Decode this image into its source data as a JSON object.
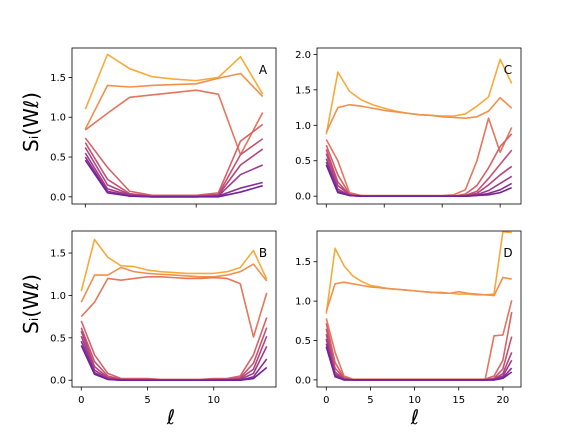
{
  "figure": {
    "ylabel": "Sᵢ(Wℓ)",
    "xlabel": "ℓ"
  },
  "colors": [
    "#f7aa3a",
    "#f1904d",
    "#e3765d",
    "#d46368",
    "#c45373",
    "#b2457e",
    "#a03a88",
    "#8a2f92",
    "#72229b"
  ],
  "chart_data": [
    {
      "panel": "A",
      "type": "line",
      "x": [
        0,
        1,
        2,
        3,
        4,
        5,
        6,
        7,
        8
      ],
      "xlim": [
        -0.6,
        8.6
      ],
      "ylim": [
        -0.09,
        1.87
      ],
      "xticks": [
        0,
        5
      ],
      "yticks": [
        0.0,
        0.5,
        1.0,
        1.5
      ],
      "xtick_labels_visible": false,
      "series": [
        {
          "values": [
            1.1,
            1.79,
            1.61,
            1.51,
            1.48,
            1.46,
            1.5,
            1.76,
            1.29
          ]
        },
        {
          "values": [
            0.85,
            1.4,
            1.38,
            1.4,
            1.41,
            1.42,
            1.49,
            1.55,
            1.26
          ]
        },
        {
          "values": [
            0.84,
            1.05,
            1.25,
            1.28,
            1.31,
            1.34,
            1.29,
            0.53,
            1.06
          ]
        },
        {
          "values": [
            0.74,
            0.37,
            0.07,
            0.02,
            0.02,
            0.02,
            0.05,
            0.7,
            0.91
          ]
        },
        {
          "values": [
            0.68,
            0.22,
            0.04,
            0.01,
            0.01,
            0.01,
            0.03,
            0.53,
            0.73
          ]
        },
        {
          "values": [
            0.62,
            0.15,
            0.03,
            0.01,
            0.01,
            0.01,
            0.02,
            0.4,
            0.6
          ]
        },
        {
          "values": [
            0.55,
            0.1,
            0.02,
            0.0,
            0.0,
            0.0,
            0.01,
            0.28,
            0.4
          ]
        },
        {
          "values": [
            0.5,
            0.07,
            0.01,
            0.0,
            0.0,
            0.0,
            0.01,
            0.11,
            0.18
          ]
        },
        {
          "values": [
            0.46,
            0.05,
            0.01,
            0.0,
            0.0,
            0.0,
            0.0,
            0.06,
            0.14
          ]
        }
      ]
    },
    {
      "panel": "C",
      "type": "line",
      "x": [
        0,
        1,
        2,
        3,
        4,
        5,
        6,
        7,
        8,
        9,
        10,
        11,
        12,
        13,
        14,
        15,
        16
      ],
      "xlim": [
        -0.8,
        16.8
      ],
      "ylim": [
        -0.11,
        2.09
      ],
      "xticks": [
        0,
        5,
        10,
        15,
        20
      ],
      "yticks": [
        0.0,
        0.5,
        1.0,
        1.5,
        2.0
      ],
      "xtick_labels_visible": false,
      "series": [
        {
          "values": [
            0.87,
            1.75,
            1.48,
            1.36,
            1.29,
            1.24,
            1.2,
            1.17,
            1.15,
            1.14,
            1.13,
            1.13,
            1.16,
            1.27,
            1.4,
            1.93,
            1.59
          ]
        },
        {
          "values": [
            0.9,
            1.25,
            1.29,
            1.27,
            1.24,
            1.21,
            1.19,
            1.17,
            1.15,
            1.14,
            1.12,
            1.11,
            1.1,
            1.12,
            1.2,
            1.39,
            1.24
          ]
        },
        {
          "values": [
            0.8,
            0.5,
            0.05,
            0.01,
            0.01,
            0.01,
            0.01,
            0.01,
            0.01,
            0.01,
            0.01,
            0.02,
            0.09,
            0.5,
            1.1,
            0.62,
            0.97
          ]
        },
        {
          "values": [
            0.72,
            0.3,
            0.03,
            0.01,
            0.0,
            0.0,
            0.0,
            0.0,
            0.0,
            0.0,
            0.0,
            0.0,
            0.03,
            0.15,
            0.4,
            0.7,
            0.88
          ]
        },
        {
          "values": [
            0.66,
            0.2,
            0.02,
            0.0,
            0.0,
            0.0,
            0.0,
            0.0,
            0.0,
            0.0,
            0.0,
            0.0,
            0.01,
            0.07,
            0.25,
            0.45,
            0.65
          ]
        },
        {
          "values": [
            0.6,
            0.15,
            0.02,
            0.0,
            0.0,
            0.0,
            0.0,
            0.0,
            0.0,
            0.0,
            0.0,
            0.0,
            0.01,
            0.04,
            0.16,
            0.3,
            0.42
          ]
        },
        {
          "values": [
            0.53,
            0.1,
            0.01,
            0.0,
            0.0,
            0.0,
            0.0,
            0.0,
            0.0,
            0.0,
            0.0,
            0.0,
            0.0,
            0.02,
            0.08,
            0.18,
            0.28
          ]
        },
        {
          "values": [
            0.48,
            0.07,
            0.01,
            0.0,
            0.0,
            0.0,
            0.0,
            0.0,
            0.0,
            0.0,
            0.0,
            0.0,
            0.0,
            0.01,
            0.04,
            0.09,
            0.18
          ]
        },
        {
          "values": [
            0.44,
            0.05,
            0.01,
            0.0,
            0.0,
            0.0,
            0.0,
            0.0,
            0.0,
            0.0,
            0.0,
            0.0,
            0.0,
            0.01,
            0.02,
            0.05,
            0.12
          ]
        }
      ]
    },
    {
      "panel": "B",
      "type": "line",
      "x": [
        0,
        1,
        2,
        3,
        4,
        5,
        6,
        7,
        8,
        9,
        10,
        11,
        12,
        13,
        14
      ],
      "xlim": [
        -0.7,
        14.7
      ],
      "ylim": [
        -0.08,
        1.76
      ],
      "xticks": [
        0,
        5,
        10
      ],
      "yticks": [
        0.0,
        0.5,
        1.0,
        1.5
      ],
      "xtick_labels_visible": true,
      "series": [
        {
          "values": [
            1.05,
            1.66,
            1.45,
            1.35,
            1.34,
            1.3,
            1.28,
            1.27,
            1.26,
            1.26,
            1.26,
            1.28,
            1.33,
            1.53,
            1.19
          ]
        },
        {
          "values": [
            0.92,
            1.24,
            1.24,
            1.33,
            1.28,
            1.26,
            1.25,
            1.24,
            1.23,
            1.22,
            1.22,
            1.24,
            1.28,
            1.37,
            1.17
          ]
        },
        {
          "values": [
            0.75,
            0.92,
            1.2,
            1.18,
            1.2,
            1.22,
            1.22,
            1.21,
            1.2,
            1.2,
            1.21,
            1.2,
            1.14,
            0.51,
            1.03
          ]
        },
        {
          "values": [
            0.7,
            0.3,
            0.08,
            0.02,
            0.02,
            0.02,
            0.01,
            0.01,
            0.01,
            0.01,
            0.02,
            0.02,
            0.05,
            0.3,
            0.74
          ]
        },
        {
          "values": [
            0.62,
            0.22,
            0.05,
            0.01,
            0.01,
            0.01,
            0.0,
            0.0,
            0.0,
            0.0,
            0.01,
            0.01,
            0.03,
            0.2,
            0.62
          ]
        },
        {
          "values": [
            0.58,
            0.16,
            0.03,
            0.01,
            0.0,
            0.0,
            0.0,
            0.0,
            0.0,
            0.0,
            0.0,
            0.01,
            0.02,
            0.13,
            0.52
          ]
        },
        {
          "values": [
            0.52,
            0.12,
            0.02,
            0.0,
            0.0,
            0.0,
            0.0,
            0.0,
            0.0,
            0.0,
            0.0,
            0.0,
            0.01,
            0.08,
            0.4
          ]
        },
        {
          "values": [
            0.46,
            0.09,
            0.01,
            0.0,
            0.0,
            0.0,
            0.0,
            0.0,
            0.0,
            0.0,
            0.0,
            0.0,
            0.0,
            0.04,
            0.25
          ]
        },
        {
          "values": [
            0.41,
            0.07,
            0.01,
            0.0,
            0.0,
            0.0,
            0.0,
            0.0,
            0.0,
            0.0,
            0.0,
            0.0,
            0.0,
            0.02,
            0.15
          ]
        }
      ]
    },
    {
      "panel": "D",
      "type": "line",
      "x": [
        0,
        1,
        2,
        3,
        4,
        5,
        6,
        7,
        8,
        9,
        10,
        11,
        12,
        13,
        14,
        15,
        16,
        17,
        18,
        19,
        20,
        21
      ],
      "xlim": [
        -1.05,
        22.05
      ],
      "ylim": [
        -0.09,
        1.89
      ],
      "xticks": [
        0,
        5,
        10,
        15,
        20
      ],
      "yticks": [
        0.0,
        0.5,
        1.0,
        1.5
      ],
      "xtick_labels_visible": true,
      "series": [
        {
          "values": [
            0.84,
            1.67,
            1.45,
            1.32,
            1.25,
            1.2,
            1.18,
            1.16,
            1.15,
            1.14,
            1.13,
            1.12,
            1.11,
            1.1,
            1.1,
            1.09,
            1.09,
            1.08,
            1.08,
            1.09,
            1.88,
            1.87
          ]
        },
        {
          "values": [
            0.87,
            1.22,
            1.24,
            1.22,
            1.2,
            1.18,
            1.17,
            1.16,
            1.15,
            1.14,
            1.13,
            1.12,
            1.11,
            1.11,
            1.1,
            1.12,
            1.1,
            1.09,
            1.08,
            1.07,
            1.3,
            1.28
          ]
        },
        {
          "values": [
            0.78,
            0.35,
            0.05,
            0.01,
            0.01,
            0.01,
            0.01,
            0.01,
            0.01,
            0.01,
            0.01,
            0.01,
            0.01,
            0.01,
            0.01,
            0.01,
            0.01,
            0.01,
            0.01,
            0.56,
            0.57,
            1.01
          ]
        },
        {
          "values": [
            0.72,
            0.22,
            0.03,
            0.0,
            0.0,
            0.0,
            0.0,
            0.0,
            0.0,
            0.0,
            0.0,
            0.0,
            0.0,
            0.0,
            0.0,
            0.0,
            0.0,
            0.0,
            0.01,
            0.05,
            0.25,
            0.86
          ]
        },
        {
          "values": [
            0.65,
            0.15,
            0.02,
            0.0,
            0.0,
            0.0,
            0.0,
            0.0,
            0.0,
            0.0,
            0.0,
            0.0,
            0.0,
            0.0,
            0.0,
            0.0,
            0.0,
            0.0,
            0.0,
            0.02,
            0.14,
            0.55
          ]
        },
        {
          "values": [
            0.58,
            0.1,
            0.01,
            0.0,
            0.0,
            0.0,
            0.0,
            0.0,
            0.0,
            0.0,
            0.0,
            0.0,
            0.0,
            0.0,
            0.0,
            0.0,
            0.0,
            0.0,
            0.0,
            0.01,
            0.08,
            0.35
          ]
        },
        {
          "values": [
            0.52,
            0.07,
            0.01,
            0.0,
            0.0,
            0.0,
            0.0,
            0.0,
            0.0,
            0.0,
            0.0,
            0.0,
            0.0,
            0.0,
            0.0,
            0.0,
            0.0,
            0.0,
            0.0,
            0.01,
            0.05,
            0.25
          ]
        },
        {
          "values": [
            0.46,
            0.05,
            0.0,
            0.0,
            0.0,
            0.0,
            0.0,
            0.0,
            0.0,
            0.0,
            0.0,
            0.0,
            0.0,
            0.0,
            0.0,
            0.0,
            0.0,
            0.0,
            0.0,
            0.0,
            0.03,
            0.15
          ]
        },
        {
          "values": [
            0.42,
            0.04,
            0.0,
            0.0,
            0.0,
            0.0,
            0.0,
            0.0,
            0.0,
            0.0,
            0.0,
            0.0,
            0.0,
            0.0,
            0.0,
            0.0,
            0.0,
            0.0,
            0.0,
            0.0,
            0.02,
            0.1
          ]
        }
      ]
    }
  ]
}
